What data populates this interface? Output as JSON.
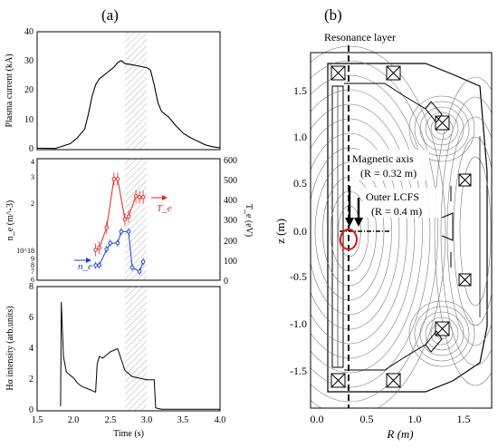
{
  "panel_a": {
    "label": "(a)",
    "xlabel": "Time (s)",
    "x_ticks": [
      "1.5",
      "2.0",
      "2.5",
      "3.0",
      "3.5",
      "4.0"
    ],
    "hatched_window": [
      2.7,
      3.0
    ],
    "colors": {
      "ne": "#1f3fd8",
      "te": "#e02828",
      "trace": "#000000",
      "hatch": "#9a9a9a"
    }
  },
  "panel_b": {
    "label": "(b)",
    "title": "Resonance layer",
    "xlabel": "R (m)",
    "ylabel": "z (m)",
    "x_ticks": [
      "0.0",
      "0.5",
      "1.0",
      "1.5"
    ],
    "y_ticks": [
      "1.5",
      "1.0",
      "0.5",
      "0.0",
      "-0.5",
      "-1.0",
      "-1.5"
    ],
    "annotations": {
      "axis_title": "Magnetic axis",
      "axis_value": "(R = 0.32 m)",
      "lcfs_title": "Outer LCFS",
      "lcfs_value": "(R = 0.4 m)"
    },
    "colors": {
      "marker": "#e01010",
      "lines": "#000000",
      "flux": "#6e6e6e"
    }
  },
  "chart_data": [
    {
      "type": "line",
      "title": "",
      "xlabel": "Time (s)",
      "ylabel": "Plasma current (kA)",
      "xlim": [
        1.5,
        4.0
      ],
      "ylim": [
        0,
        40
      ],
      "y_ticks": [
        "0",
        "10",
        "20",
        "30",
        "40"
      ],
      "series": [
        {
          "x": [
            1.8,
            1.95,
            2.05,
            2.15,
            2.2,
            2.25,
            2.3,
            2.35,
            2.4,
            2.45,
            2.5,
            2.55,
            2.6,
            2.65,
            2.7,
            2.8,
            2.9,
            3.0,
            3.05,
            3.1,
            3.15,
            3.2,
            3.3,
            3.4,
            3.5,
            3.6,
            3.7,
            3.8,
            3.9,
            4.0
          ],
          "y": [
            0.8,
            2,
            4,
            7,
            12,
            18,
            22,
            24,
            25,
            26,
            27,
            28,
            29.5,
            30.2,
            29.2,
            28.8,
            28.3,
            27.8,
            27,
            22,
            16,
            13,
            11,
            8,
            5.5,
            4,
            2.8,
            1.6,
            1.0,
            0.6
          ]
        }
      ]
    },
    {
      "type": "scatter",
      "title": "",
      "xlabel": "Time (s)",
      "ylabel": "n_e (m^-3)",
      "y2label": "T_e (eV)",
      "y_scale": "log",
      "y_tick_labels": [
        "4",
        "3",
        "2",
        "10^18",
        "9",
        "8",
        "7",
        "6"
      ],
      "y2lim": [
        0,
        600
      ],
      "y2_ticks": [
        "0",
        "100",
        "200",
        "300",
        "400",
        "500",
        "600"
      ],
      "series": [
        {
          "name": "n_e",
          "x": [
            2.3,
            2.35,
            2.45,
            2.5,
            2.6,
            2.65,
            2.75,
            2.8,
            2.9,
            2.95
          ],
          "y": [
            0.75,
            0.75,
            1.0,
            1.12,
            1.12,
            1.38,
            1.38,
            0.72,
            0.67,
            0.8
          ],
          "error": 0.04
        },
        {
          "name": "T_e",
          "x": [
            2.3,
            2.35,
            2.45,
            2.55,
            2.6,
            2.7,
            2.75,
            2.85,
            2.9,
            2.95
          ],
          "y2": [
            150,
            160,
            260,
            500,
            500,
            300,
            315,
            415,
            410,
            410
          ],
          "error": 25
        }
      ]
    },
    {
      "type": "line",
      "title": "",
      "xlabel": "Time (s)",
      "ylabel": "Hα intensity (arb.units)",
      "xlim": [
        1.5,
        4.0
      ],
      "ylim": [
        0,
        8
      ],
      "y_ticks": [
        "0",
        "2",
        "4",
        "6",
        "8"
      ],
      "series": [
        {
          "x": [
            1.82,
            1.83,
            1.86,
            1.9,
            1.95,
            2.0,
            2.05,
            2.1,
            2.15,
            2.2,
            2.25,
            2.3,
            2.32,
            2.35,
            2.4,
            2.45,
            2.5,
            2.55,
            2.6,
            2.7,
            2.8,
            2.9,
            3.0,
            3.1,
            3.12,
            3.15,
            3.2,
            3.3,
            3.5,
            4.0
          ],
          "y": [
            0.3,
            7,
            3.5,
            2.5,
            2.3,
            2.1,
            1.8,
            1.6,
            1.5,
            1.4,
            1.3,
            1.2,
            3,
            3.5,
            3.4,
            3.6,
            3.8,
            3.9,
            4.0,
            2.6,
            2.2,
            2.1,
            2.0,
            2.0,
            0.2,
            0.15,
            0.1,
            0.1,
            0.1,
            0.1
          ]
        }
      ]
    },
    {
      "type": "contour",
      "title": "Resonance layer",
      "xlabel": "R (m)",
      "ylabel": "z (m)",
      "xlim": [
        0.0,
        1.8
      ],
      "ylim": [
        -1.8,
        1.8
      ],
      "resonance_layer_R": 0.32,
      "magnetic_axis": {
        "R": 0.32,
        "z": 0.0
      },
      "outer_lcfs": {
        "R": 0.4
      }
    }
  ]
}
